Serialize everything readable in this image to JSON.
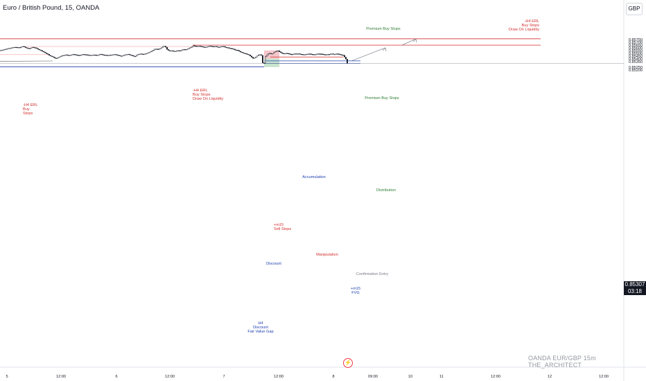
{
  "header": {
    "title": "Euro / British Pound, 15, OANDA",
    "currency": "GBP"
  },
  "watermark": "OANDA  EUR/GBP 15m  THE_ARCHITECT",
  "last_price": {
    "price": "0.85307",
    "countdown": "03:18"
  },
  "colors": {
    "up": "#131722",
    "down": "#131722",
    "red_line": "#d32f2f",
    "blue_line": "#1e40af",
    "green_text": "#2e7d32",
    "red_zone": "#f2b8bd",
    "green_zone": "#b9dcc1"
  },
  "chart_data": {
    "type": "candlestick",
    "symbol": "EUR/GBP",
    "ylim": [
      0.8518,
      0.8581
    ],
    "y_ticks": [
      "0.85750",
      "0.85700",
      "0.85650",
      "0.85600",
      "0.85550",
      "0.85500",
      "0.85450",
      "0.85400",
      "0.85350",
      "0.85250",
      "0.85200"
    ],
    "x_ticks": [
      "5",
      "12:00",
      "6",
      "12:00",
      "7",
      "12:00",
      "8",
      "09:00",
      "10",
      "11",
      "12:00",
      "12",
      "12:00"
    ],
    "price_path": [
      [
        0,
        0.8554
      ],
      [
        5,
        0.85555
      ],
      [
        10,
        0.8557
      ],
      [
        15,
        0.85585
      ],
      [
        20,
        0.856
      ],
      [
        25,
        0.8559
      ],
      [
        30,
        0.856
      ],
      [
        33,
        0.85612
      ],
      [
        37,
        0.8559
      ],
      [
        42,
        0.8557
      ],
      [
        47,
        0.856
      ],
      [
        52,
        0.8558
      ],
      [
        57,
        0.8555
      ],
      [
        62,
        0.8552
      ],
      [
        66,
        0.8549
      ],
      [
        70,
        0.8546
      ],
      [
        74,
        0.8543
      ],
      [
        77,
        0.8542
      ],
      [
        80,
        0.8539
      ],
      [
        85,
        0.8542
      ],
      [
        90,
        0.8545
      ],
      [
        95,
        0.8546
      ],
      [
        100,
        0.8545
      ],
      [
        105,
        0.8547
      ],
      [
        110,
        0.8546
      ],
      [
        115,
        0.8545
      ],
      [
        120,
        0.8547
      ],
      [
        125,
        0.8546
      ],
      [
        130,
        0.8545
      ],
      [
        135,
        0.8546
      ],
      [
        140,
        0.8545
      ],
      [
        145,
        0.8547
      ],
      [
        150,
        0.8546
      ],
      [
        155,
        0.8545
      ],
      [
        160,
        0.8546
      ],
      [
        165,
        0.8547
      ],
      [
        170,
        0.8545
      ],
      [
        175,
        0.8544
      ],
      [
        180,
        0.8546
      ],
      [
        185,
        0.8547
      ],
      [
        190,
        0.8545
      ],
      [
        194,
        0.8543
      ],
      [
        198,
        0.8546
      ],
      [
        203,
        0.8548
      ],
      [
        207,
        0.8547
      ],
      [
        212,
        0.8549
      ],
      [
        216,
        0.8551
      ],
      [
        220,
        0.8554
      ],
      [
        224,
        0.8557
      ],
      [
        228,
        0.8556
      ],
      [
        232,
        0.8558
      ],
      [
        235,
        0.8561
      ],
      [
        238,
        0.8562
      ],
      [
        241,
        0.8556
      ],
      [
        244,
        0.8553
      ],
      [
        248,
        0.8554
      ],
      [
        252,
        0.8552
      ],
      [
        256,
        0.8554
      ],
      [
        260,
        0.8553
      ],
      [
        264,
        0.8556
      ],
      [
        268,
        0.8555
      ],
      [
        272,
        0.8558
      ],
      [
        276,
        0.856
      ],
      [
        279,
        0.85625
      ],
      [
        283,
        0.8561
      ],
      [
        287,
        0.8562
      ],
      [
        291,
        0.8561
      ],
      [
        295,
        0.856
      ],
      [
        299,
        0.8561
      ],
      [
        303,
        0.8562
      ],
      [
        307,
        0.8561
      ],
      [
        311,
        0.8561
      ],
      [
        315,
        0.856
      ],
      [
        319,
        0.8561
      ],
      [
        323,
        0.8561
      ],
      [
        327,
        0.8559
      ],
      [
        331,
        0.8558
      ],
      [
        335,
        0.8557
      ],
      [
        339,
        0.8555
      ],
      [
        343,
        0.8554
      ],
      [
        347,
        0.8551
      ],
      [
        351,
        0.8549
      ],
      [
        355,
        0.8548
      ],
      [
        359,
        0.8546
      ],
      [
        362,
        0.8543
      ],
      [
        365,
        0.854
      ],
      [
        368,
        0.8541
      ],
      [
        371,
        0.8544
      ],
      [
        374,
        0.8547
      ],
      [
        377,
        0.8545
      ],
      [
        380,
        0.85245
      ],
      [
        383,
        0.8543
      ],
      [
        386,
        0.8547
      ],
      [
        389,
        0.8549
      ],
      [
        392,
        0.8547
      ],
      [
        395,
        0.855
      ],
      [
        398,
        0.85525
      ],
      [
        401,
        0.85535
      ],
      [
        404,
        0.8551
      ],
      [
        407,
        0.8549
      ],
      [
        410,
        0.8548
      ],
      [
        414,
        0.8549
      ],
      [
        418,
        0.85475
      ],
      [
        422,
        0.8547
      ],
      [
        426,
        0.8548
      ],
      [
        430,
        0.8548
      ],
      [
        434,
        0.8547
      ],
      [
        438,
        0.8546
      ],
      [
        442,
        0.8547
      ],
      [
        446,
        0.8548
      ],
      [
        450,
        0.8547
      ],
      [
        454,
        0.8546
      ],
      [
        458,
        0.8548
      ],
      [
        462,
        0.8548
      ],
      [
        466,
        0.8547
      ],
      [
        470,
        0.8546
      ],
      [
        474,
        0.8547
      ],
      [
        478,
        0.8548
      ],
      [
        482,
        0.8547
      ],
      [
        486,
        0.8548
      ],
      [
        490,
        0.8547
      ],
      [
        493,
        0.8546
      ],
      [
        495,
        0.8545
      ],
      [
        497,
        0.8542
      ],
      [
        499,
        0.8538
      ],
      [
        500,
        0.8535
      ],
      [
        501,
        0.85307
      ]
    ],
    "annotations": {
      "h4_erl_left": [
        "-H4 ERL",
        "Buy",
        "Stops"
      ],
      "h4_erl_mid": [
        "-H4 ERL",
        "Buy Stops",
        "Draw On Liquidity"
      ],
      "h4_erl_right": [
        "-H4 ERL",
        "Buy Stops",
        "Draw On Liquidity"
      ],
      "premium_top": "Premium Buy Stops",
      "premium_mid": "Premium Buy Stops",
      "accumulation": "Accumulation",
      "distribution": "Distribution",
      "m15_sell": [
        "+m15",
        "Sell Stops"
      ],
      "manipulation": "Manipulation",
      "discount": "Discount",
      "confirmation": "Confirmation Entry",
      "m15_fvg": [
        "+m15",
        "FVG"
      ],
      "h4_discount": [
        "H4",
        "Discount",
        "Fair Value Gap"
      ]
    }
  }
}
